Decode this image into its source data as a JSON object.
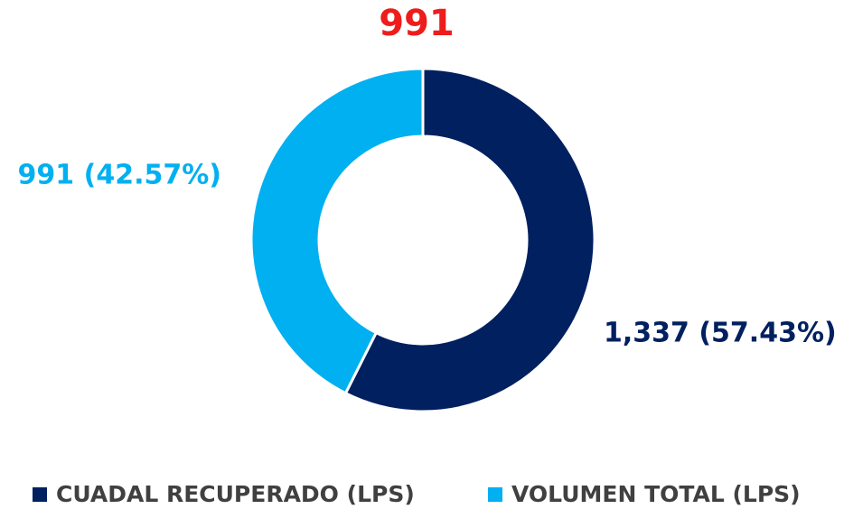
{
  "chart_data": {
    "type": "pie",
    "donut": true,
    "title": "991",
    "title_color": "#ee1c1c",
    "categories": [
      "CUADAL RECUPERADO (LPS)",
      "VOLUMEN TOTAL (LPS)"
    ],
    "values": [
      1337,
      991
    ],
    "value_labels": [
      "1,337 (57.43%)",
      "991 (42.57%)"
    ],
    "colors": [
      "#002060",
      "#00b0f0"
    ],
    "legend": "bottom"
  }
}
